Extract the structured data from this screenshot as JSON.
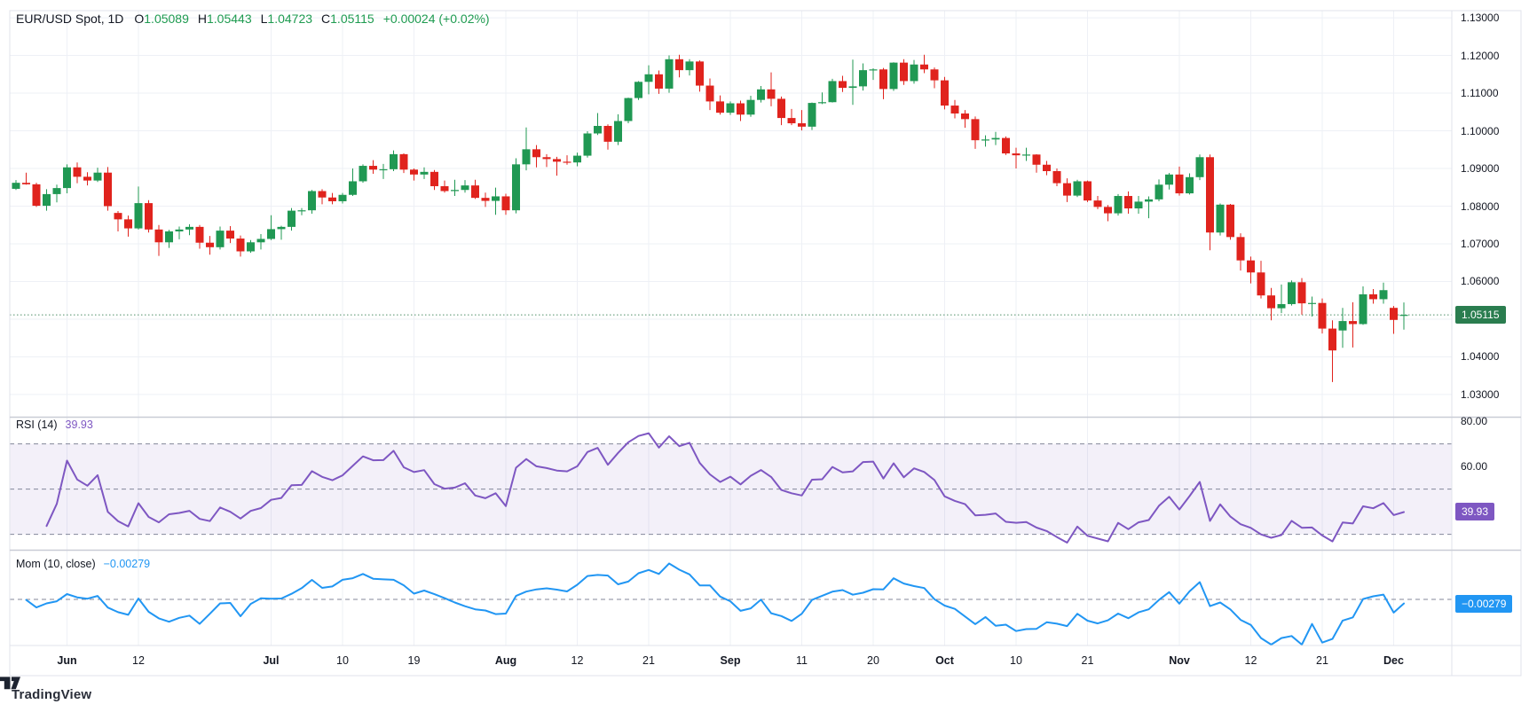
{
  "header": {
    "symbol": "EUR/USD Spot, 1D",
    "fields": [
      {
        "label": "O",
        "value": "1.05089"
      },
      {
        "label": "H",
        "value": "1.05443"
      },
      {
        "label": "L",
        "value": "1.04723"
      },
      {
        "label": "C",
        "value": "1.05115"
      }
    ],
    "change": "+0.00024 (+0.02%)"
  },
  "legends": {
    "rsi": {
      "title": "RSI (14)",
      "value": "39.93"
    },
    "mom": {
      "title": "Mom (10, close)",
      "value": "−0.00279"
    }
  },
  "axis": {
    "price_labels": [
      "1.13000",
      "1.12000",
      "1.11000",
      "1.10000",
      "1.09000",
      "1.08000",
      "1.07000",
      "1.06000",
      "1.05000",
      "1.04000",
      "1.03000"
    ],
    "rsi_labels": [
      "80.00",
      "60.00"
    ],
    "price_box": "1.05115",
    "rsi_box": "39.93",
    "mom_box": "−0.00279"
  },
  "footer": {
    "brand": "TradingView",
    "logo": "tradingview-mark"
  },
  "colors": {
    "up": "#209853",
    "down": "#e0231d",
    "price_line_box": "#2a7d4f",
    "rsi": "#7e57c2",
    "rsi_band_fill": "rgba(126,87,194,0.09)",
    "mom": "#2196f3",
    "grid": "#eef0f6",
    "dashed": "#83879a",
    "frame": "#e0e3eb",
    "separator": "#c9ccd6",
    "text": "#131722",
    "dotted_price": "#4f8f68"
  },
  "chart_data": {
    "type": "candlestick",
    "symbol": "EUR/USD Spot",
    "interval": "1D",
    "last_price": 1.05115,
    "price_range": {
      "min": 1.0241,
      "max": 1.1319
    },
    "indicators": [
      {
        "name": "RSI",
        "period": 14,
        "last": 39.93,
        "levels": [
          70,
          50,
          30
        ],
        "range": [
          23.2,
          81.6
        ],
        "legend_position": "top-left"
      },
      {
        "name": "Mom",
        "period": 10,
        "source": "close",
        "last": -0.00279,
        "levels": [
          0
        ],
        "range": [
          -0.0351,
          0.0372
        ],
        "legend_position": "top-left"
      }
    ],
    "ticks": [
      {
        "i": 5,
        "label": "Jun",
        "month": true
      },
      {
        "i": 12,
        "label": "12",
        "month": false
      },
      {
        "i": 25,
        "label": "Jul",
        "month": true
      },
      {
        "i": 32,
        "label": "10",
        "month": false
      },
      {
        "i": 39,
        "label": "19",
        "month": false
      },
      {
        "i": 48,
        "label": "Aug",
        "month": true
      },
      {
        "i": 55,
        "label": "12",
        "month": false
      },
      {
        "i": 62,
        "label": "21",
        "month": false
      },
      {
        "i": 70,
        "label": "Sep",
        "month": true
      },
      {
        "i": 77,
        "label": "11",
        "month": false
      },
      {
        "i": 84,
        "label": "20",
        "month": false
      },
      {
        "i": 91,
        "label": "Oct",
        "month": true
      },
      {
        "i": 98,
        "label": "10",
        "month": false
      },
      {
        "i": 105,
        "label": "21",
        "month": false
      },
      {
        "i": 114,
        "label": "Nov",
        "month": true
      },
      {
        "i": 121,
        "label": "12",
        "month": false
      },
      {
        "i": 128,
        "label": "21",
        "month": false
      },
      {
        "i": 135,
        "label": "Dec",
        "month": true
      }
    ],
    "candles": [
      [
        1.0846,
        1.0869,
        1.0843,
        1.0862
      ],
      [
        1.0862,
        1.0889,
        1.0857,
        1.0858
      ],
      [
        1.0858,
        1.0862,
        1.0798,
        1.0801
      ],
      [
        1.0801,
        1.0845,
        1.0788,
        1.0832
      ],
      [
        1.0832,
        1.0857,
        1.081,
        1.0848
      ],
      [
        1.0848,
        1.0911,
        1.0834,
        1.0903
      ],
      [
        1.0903,
        1.0916,
        1.0861,
        1.0878
      ],
      [
        1.0878,
        1.089,
        1.0855,
        1.0868
      ],
      [
        1.0868,
        1.0902,
        1.0864,
        1.0889
      ],
      [
        1.0889,
        1.0904,
        1.0788,
        1.08
      ],
      [
        1.0782,
        1.0787,
        1.0733,
        1.0765
      ],
      [
        1.0765,
        1.0775,
        1.0719,
        1.0741
      ],
      [
        1.0741,
        1.0852,
        1.0738,
        1.0808
      ],
      [
        1.0808,
        1.0816,
        1.073,
        1.0738
      ],
      [
        1.0738,
        1.075,
        1.0668,
        1.0704
      ],
      [
        1.0704,
        1.0737,
        1.0689,
        1.0733
      ],
      [
        1.0733,
        1.0746,
        1.0712,
        1.0738
      ],
      [
        1.0738,
        1.0752,
        1.0723,
        1.0745
      ],
      [
        1.0745,
        1.075,
        1.0687,
        1.0703
      ],
      [
        1.0703,
        1.0721,
        1.0671,
        1.0691
      ],
      [
        1.0691,
        1.0746,
        1.0685,
        1.0735
      ],
      [
        1.0735,
        1.0747,
        1.0702,
        1.0714
      ],
      [
        1.0714,
        1.0722,
        1.0666,
        1.068
      ],
      [
        1.068,
        1.071,
        1.0676,
        1.0704
      ],
      [
        1.0704,
        1.0726,
        1.0685,
        1.0713
      ],
      [
        1.0713,
        1.0776,
        1.071,
        1.0739
      ],
      [
        1.0739,
        1.0748,
        1.0711,
        1.0745
      ],
      [
        1.0745,
        1.0795,
        1.0735,
        1.0788
      ],
      [
        1.0788,
        1.0795,
        1.0776,
        1.0789
      ],
      [
        1.0789,
        1.0843,
        1.078,
        1.084
      ],
      [
        1.084,
        1.0845,
        1.0805,
        1.0823
      ],
      [
        1.0823,
        1.0835,
        1.0805,
        1.0813
      ],
      [
        1.0813,
        1.0835,
        1.0807,
        1.083
      ],
      [
        1.083,
        1.09,
        1.0827,
        1.0866
      ],
      [
        1.0866,
        1.0911,
        1.0862,
        1.0907
      ],
      [
        1.0907,
        1.0922,
        1.0886,
        1.0897
      ],
      [
        1.0897,
        1.0912,
        1.0872,
        1.0898
      ],
      [
        1.0898,
        1.0948,
        1.0893,
        1.0938
      ],
      [
        1.0938,
        1.094,
        1.0888,
        1.0897
      ],
      [
        1.0897,
        1.09,
        1.0868,
        1.0884
      ],
      [
        1.0884,
        1.0903,
        1.0872,
        1.0891
      ],
      [
        1.0891,
        1.0896,
        1.0843,
        1.0853
      ],
      [
        1.0853,
        1.0868,
        1.0836,
        1.084
      ],
      [
        1.084,
        1.087,
        1.0827,
        1.0843
      ],
      [
        1.0843,
        1.0869,
        1.0836,
        1.0855
      ],
      [
        1.0855,
        1.087,
        1.0819,
        1.0822
      ],
      [
        1.0822,
        1.0836,
        1.0798,
        1.0814
      ],
      [
        1.0814,
        1.0849,
        1.0777,
        1.0826
      ],
      [
        1.0826,
        1.0833,
        1.0777,
        1.0789
      ],
      [
        1.0789,
        1.0927,
        1.0781,
        1.0911
      ],
      [
        1.0911,
        1.1009,
        1.0895,
        1.0951
      ],
      [
        1.0951,
        1.0962,
        1.0903,
        1.093
      ],
      [
        1.093,
        1.0938,
        1.0904,
        1.0925
      ],
      [
        1.0925,
        1.0931,
        1.0881,
        1.0918
      ],
      [
        1.0918,
        1.0935,
        1.091,
        1.0916
      ],
      [
        1.0916,
        1.0942,
        1.0906,
        1.0934
      ],
      [
        1.0934,
        1.0999,
        1.0929,
        1.0993
      ],
      [
        1.0993,
        1.1047,
        1.0989,
        1.1013
      ],
      [
        1.1013,
        1.1017,
        1.095,
        1.0971
      ],
      [
        1.0971,
        1.1044,
        1.0962,
        1.1026
      ],
      [
        1.1026,
        1.1088,
        1.102,
        1.1087
      ],
      [
        1.1087,
        1.1132,
        1.1082,
        1.113
      ],
      [
        1.113,
        1.1174,
        1.1097,
        1.115
      ],
      [
        1.115,
        1.116,
        1.1098,
        1.1112
      ],
      [
        1.1112,
        1.12,
        1.1101,
        1.119
      ],
      [
        1.119,
        1.1202,
        1.1142,
        1.1161
      ],
      [
        1.1161,
        1.119,
        1.1147,
        1.1184
      ],
      [
        1.1184,
        1.1187,
        1.1104,
        1.112
      ],
      [
        1.112,
        1.1139,
        1.1055,
        1.1078
      ],
      [
        1.1078,
        1.1094,
        1.1043,
        1.1048
      ],
      [
        1.1048,
        1.1078,
        1.1042,
        1.1073
      ],
      [
        1.1073,
        1.108,
        1.1026,
        1.1043
      ],
      [
        1.1043,
        1.1093,
        1.1037,
        1.1082
      ],
      [
        1.1082,
        1.1119,
        1.1075,
        1.111
      ],
      [
        1.111,
        1.1155,
        1.1065,
        1.1085
      ],
      [
        1.1085,
        1.1091,
        1.1015,
        1.1034
      ],
      [
        1.1034,
        1.1058,
        1.1015,
        1.102
      ],
      [
        1.102,
        1.1055,
        1.1001,
        1.1011
      ],
      [
        1.1011,
        1.1075,
        1.1002,
        1.1074
      ],
      [
        1.1074,
        1.1102,
        1.1071,
        1.1076
      ],
      [
        1.1076,
        1.1138,
        1.1075,
        1.1132
      ],
      [
        1.1132,
        1.1146,
        1.1103,
        1.1114
      ],
      [
        1.1114,
        1.1189,
        1.1069,
        1.1118
      ],
      [
        1.1118,
        1.1179,
        1.1107,
        1.1161
      ],
      [
        1.1161,
        1.1166,
        1.1135,
        1.1163
      ],
      [
        1.1163,
        1.1167,
        1.1084,
        1.1111
      ],
      [
        1.1111,
        1.1182,
        1.1106,
        1.1181
      ],
      [
        1.1181,
        1.119,
        1.1122,
        1.1132
      ],
      [
        1.1132,
        1.1188,
        1.1125,
        1.1176
      ],
      [
        1.1176,
        1.1202,
        1.1153,
        1.1163
      ],
      [
        1.1163,
        1.1168,
        1.1113,
        1.1134
      ],
      [
        1.1134,
        1.1143,
        1.1057,
        1.1067
      ],
      [
        1.1067,
        1.1082,
        1.1033,
        1.1046
      ],
      [
        1.1046,
        1.1055,
        1.1008,
        1.1031
      ],
      [
        1.1031,
        1.1038,
        1.0952,
        1.0975
      ],
      [
        1.0975,
        1.0988,
        1.0958,
        1.0977
      ],
      [
        1.0977,
        1.0997,
        1.0962,
        1.0981
      ],
      [
        1.0981,
        1.0985,
        1.0936,
        1.094
      ],
      [
        1.094,
        1.0955,
        1.09,
        1.0935
      ],
      [
        1.0935,
        1.0955,
        1.092,
        1.0937
      ],
      [
        1.0937,
        1.0938,
        1.0889,
        1.091
      ],
      [
        1.091,
        1.092,
        1.0882,
        1.0893
      ],
      [
        1.0893,
        1.09,
        1.0853,
        1.0861
      ],
      [
        1.0861,
        1.0874,
        1.0811,
        1.0828
      ],
      [
        1.0828,
        1.087,
        1.0824,
        1.0866
      ],
      [
        1.0866,
        1.0868,
        1.0811,
        1.0815
      ],
      [
        1.0815,
        1.0827,
        1.0792,
        1.0798
      ],
      [
        1.0798,
        1.0803,
        1.076,
        1.0781
      ],
      [
        1.0781,
        1.0832,
        1.0775,
        1.0827
      ],
      [
        1.0827,
        1.0839,
        1.078,
        1.0794
      ],
      [
        1.0794,
        1.0827,
        1.078,
        1.0812
      ],
      [
        1.0812,
        1.0826,
        1.0768,
        1.0818
      ],
      [
        1.0818,
        1.0871,
        1.0813,
        1.0857
      ],
      [
        1.0857,
        1.0888,
        1.0844,
        1.0884
      ],
      [
        1.0884,
        1.0905,
        1.0828,
        1.0834
      ],
      [
        1.0834,
        1.0887,
        1.0831,
        1.0877
      ],
      [
        1.0877,
        1.0937,
        1.0869,
        1.093
      ],
      [
        1.093,
        1.0937,
        1.0683,
        1.073
      ],
      [
        1.073,
        1.0807,
        1.0722,
        1.0804
      ],
      [
        1.0804,
        1.0806,
        1.0711,
        1.0718
      ],
      [
        1.0718,
        1.0728,
        1.0629,
        1.0656
      ],
      [
        1.0656,
        1.0666,
        1.0595,
        1.0624
      ],
      [
        1.0624,
        1.0655,
        1.0555,
        1.0563
      ],
      [
        1.0563,
        1.0583,
        1.0497,
        1.0529
      ],
      [
        1.0529,
        1.0592,
        1.0516,
        1.054
      ],
      [
        1.054,
        1.0603,
        1.0536,
        1.0598
      ],
      [
        1.0598,
        1.0609,
        1.0512,
        1.0542
      ],
      [
        1.0542,
        1.056,
        1.0507,
        1.0543
      ],
      [
        1.0543,
        1.0555,
        1.0462,
        1.0475
      ],
      [
        1.0475,
        1.0497,
        1.0333,
        1.0417
      ],
      [
        1.047,
        1.053,
        1.0424,
        1.0495
      ],
      [
        1.0495,
        1.0545,
        1.0425,
        1.0487
      ],
      [
        1.0487,
        1.0587,
        1.0485,
        1.0566
      ],
      [
        1.0566,
        1.058,
        1.0541,
        1.0553
      ],
      [
        1.0553,
        1.0597,
        1.0541,
        1.0577
      ],
      [
        1.053,
        1.0535,
        1.0461,
        1.0498
      ],
      [
        1.05089,
        1.05443,
        1.04723,
        1.05115
      ]
    ]
  }
}
